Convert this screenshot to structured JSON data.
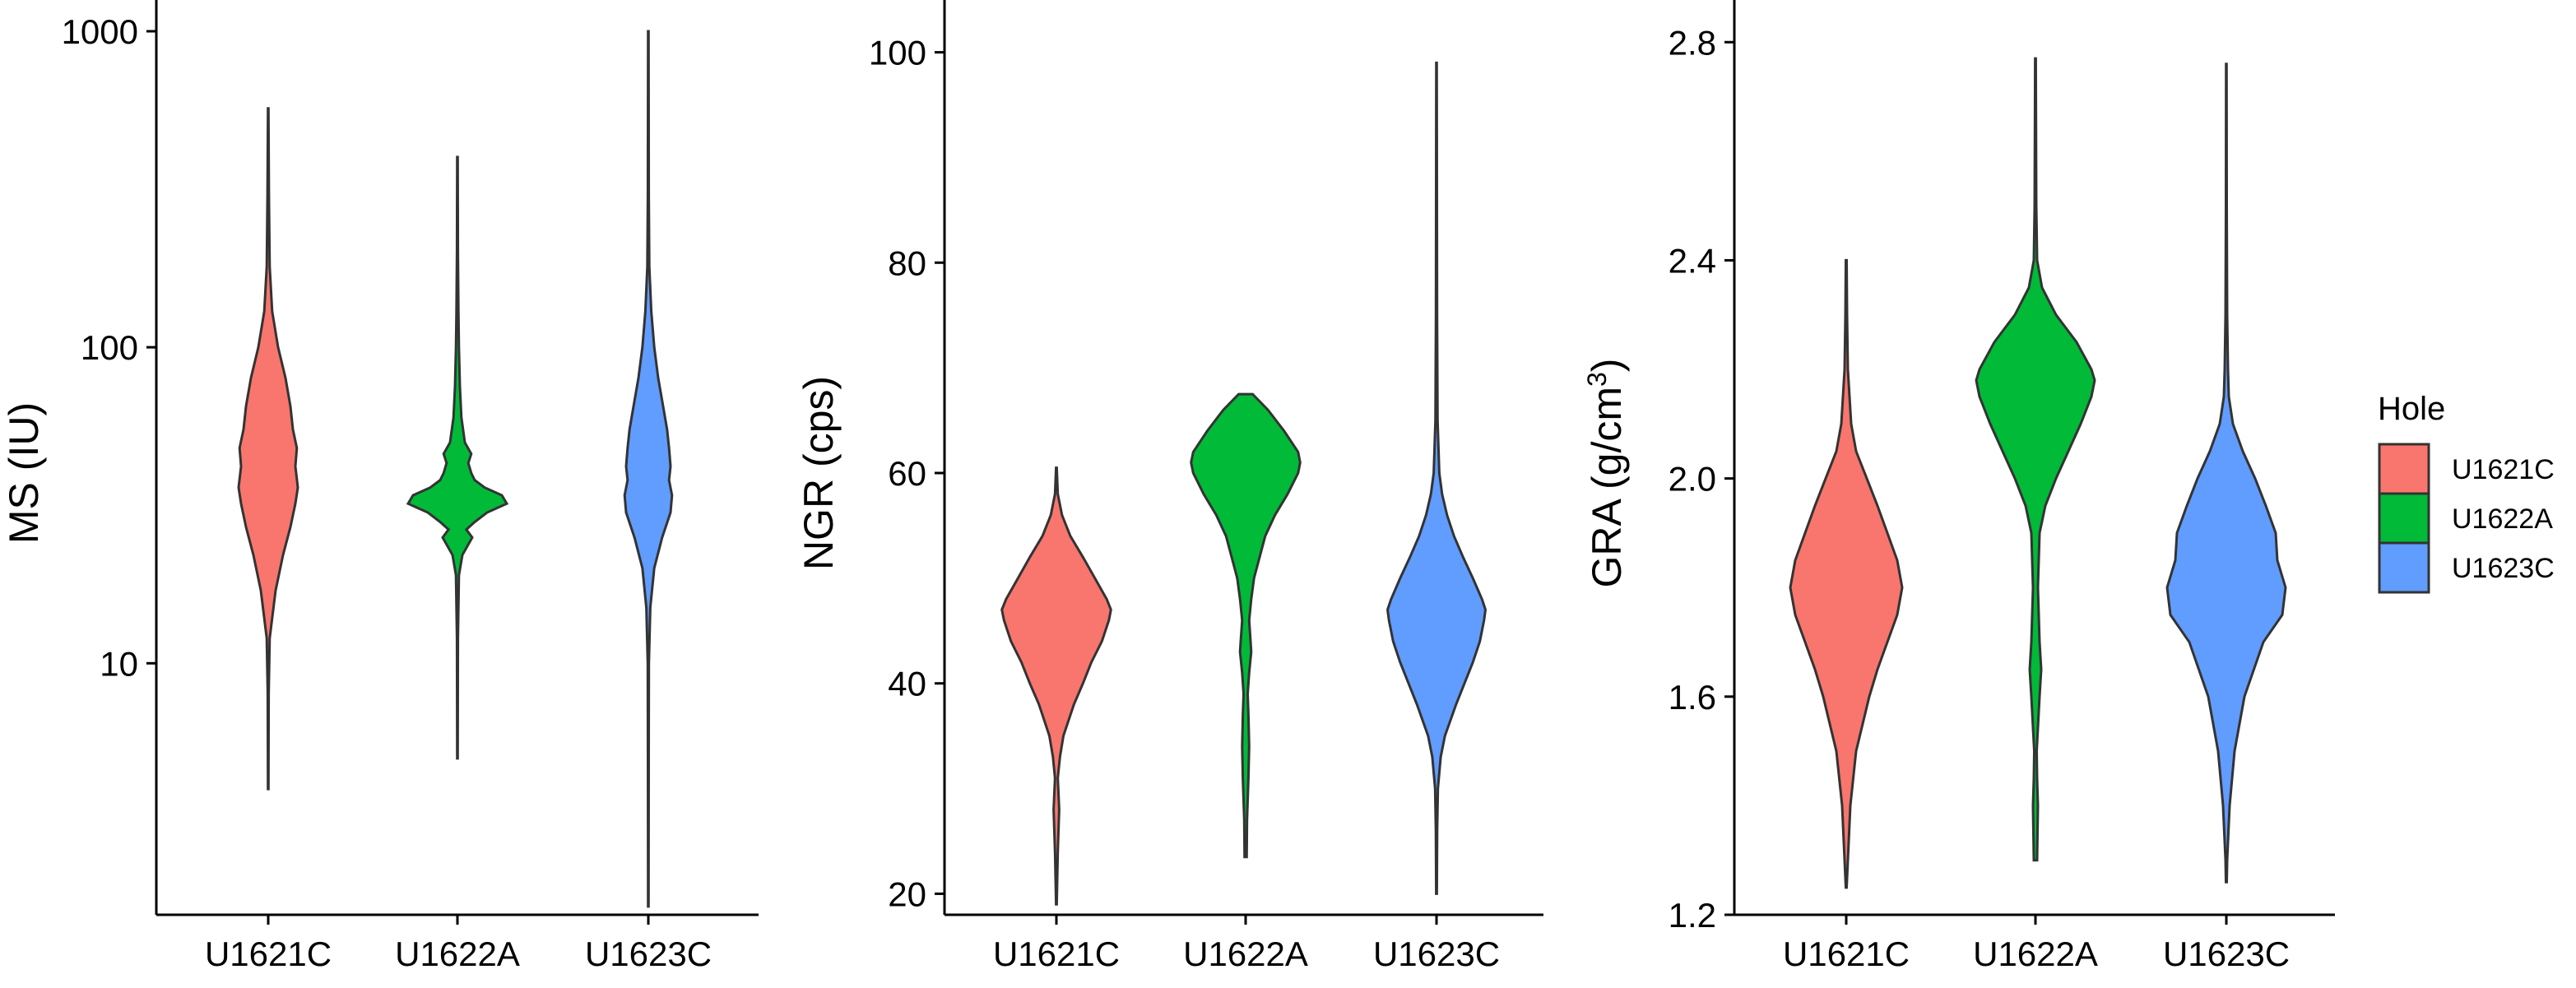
{
  "chart_data": [
    {
      "type": "violin",
      "ylabel": "MS (IU)",
      "yscale": "log",
      "ylim": [
        1.6,
        1000
      ],
      "yticks": [
        10,
        100,
        1000
      ],
      "ytick_labels": [
        "10",
        "100",
        "1000"
      ],
      "categories": [
        "U1621C",
        "U1622A",
        "U1623C"
      ],
      "colors": [
        "#F8766D",
        "#00BA38",
        "#619CFF"
      ],
      "series": [
        {
          "category": "U1621C",
          "min": 4,
          "max": 570,
          "profile": [
            [
              4,
              0.005
            ],
            [
              8,
              0.01
            ],
            [
              12,
              0.03
            ],
            [
              17,
              0.15
            ],
            [
              22,
              0.3
            ],
            [
              27,
              0.45
            ],
            [
              32,
              0.55
            ],
            [
              36,
              0.6
            ],
            [
              42,
              0.55
            ],
            [
              48,
              0.58
            ],
            [
              55,
              0.5
            ],
            [
              65,
              0.45
            ],
            [
              80,
              0.35
            ],
            [
              100,
              0.2
            ],
            [
              130,
              0.08
            ],
            [
              180,
              0.03
            ],
            [
              300,
              0.015
            ],
            [
              570,
              0.005
            ]
          ]
        },
        {
          "category": "U1622A",
          "min": 5,
          "max": 400,
          "profile": [
            [
              5,
              0.005
            ],
            [
              12,
              0.01
            ],
            [
              19,
              0.03
            ],
            [
              22,
              0.1
            ],
            [
              25,
              0.3
            ],
            [
              26.5,
              0.18
            ],
            [
              28,
              0.35
            ],
            [
              30,
              0.6
            ],
            [
              32,
              1.0
            ],
            [
              34,
              0.9
            ],
            [
              36,
              0.55
            ],
            [
              38,
              0.35
            ],
            [
              40,
              0.28
            ],
            [
              43,
              0.22
            ],
            [
              46,
              0.28
            ],
            [
              50,
              0.15
            ],
            [
              60,
              0.08
            ],
            [
              75,
              0.05
            ],
            [
              100,
              0.03
            ],
            [
              130,
              0.02
            ],
            [
              200,
              0.01
            ],
            [
              400,
              0.005
            ]
          ]
        },
        {
          "category": "U1623C",
          "min": 1.7,
          "max": 1000,
          "profile": [
            [
              1.7,
              0.005
            ],
            [
              5,
              0.008
            ],
            [
              10,
              0.012
            ],
            [
              15,
              0.04
            ],
            [
              20,
              0.12
            ],
            [
              25,
              0.28
            ],
            [
              30,
              0.45
            ],
            [
              34,
              0.48
            ],
            [
              38,
              0.42
            ],
            [
              42,
              0.45
            ],
            [
              48,
              0.42
            ],
            [
              55,
              0.38
            ],
            [
              65,
              0.3
            ],
            [
              80,
              0.2
            ],
            [
              100,
              0.12
            ],
            [
              130,
              0.06
            ],
            [
              180,
              0.02
            ],
            [
              300,
              0.01
            ],
            [
              1000,
              0.005
            ]
          ]
        }
      ]
    },
    {
      "type": "violin",
      "ylabel": "NGR (cps)",
      "ylim": [
        18,
        102
      ],
      "yticks": [
        20,
        40,
        60,
        80,
        100
      ],
      "ytick_labels": [
        "20",
        "40",
        "60",
        "80",
        "100"
      ],
      "categories": [
        "U1621C",
        "U1622A",
        "U1623C"
      ],
      "colors": [
        "#F8766D",
        "#00BA38",
        "#619CFF"
      ],
      "series": [
        {
          "category": "U1621C",
          "min": 19,
          "max": 60.5,
          "profile": [
            [
              19,
              0.005
            ],
            [
              24,
              0.02
            ],
            [
              28,
              0.04
            ],
            [
              31,
              0.02
            ],
            [
              33,
              0.05
            ],
            [
              35,
              0.1
            ],
            [
              38,
              0.25
            ],
            [
              40,
              0.38
            ],
            [
              42,
              0.5
            ],
            [
              44,
              0.65
            ],
            [
              46,
              0.75
            ],
            [
              47,
              0.78
            ],
            [
              48,
              0.72
            ],
            [
              50,
              0.55
            ],
            [
              52,
              0.38
            ],
            [
              54,
              0.2
            ],
            [
              56,
              0.08
            ],
            [
              58,
              0.02
            ],
            [
              60.5,
              0.005
            ]
          ]
        },
        {
          "category": "U1622A",
          "min": 23.5,
          "max": 67.5,
          "profile": [
            [
              23.5,
              0.015
            ],
            [
              27,
              0.02
            ],
            [
              31,
              0.04
            ],
            [
              34,
              0.05
            ],
            [
              37,
              0.04
            ],
            [
              39,
              0.03
            ],
            [
              41,
              0.05
            ],
            [
              43,
              0.08
            ],
            [
              44,
              0.07
            ],
            [
              46,
              0.05
            ],
            [
              48,
              0.08
            ],
            [
              50,
              0.12
            ],
            [
              52,
              0.2
            ],
            [
              54,
              0.28
            ],
            [
              56,
              0.42
            ],
            [
              58,
              0.6
            ],
            [
              60,
              0.75
            ],
            [
              61,
              0.78
            ],
            [
              62,
              0.75
            ],
            [
              64,
              0.55
            ],
            [
              66,
              0.32
            ],
            [
              67.5,
              0.1
            ]
          ]
        },
        {
          "category": "U1623C",
          "min": 20,
          "max": 99,
          "profile": [
            [
              20,
              0.005
            ],
            [
              26,
              0.01
            ],
            [
              30,
              0.02
            ],
            [
              33,
              0.06
            ],
            [
              35,
              0.12
            ],
            [
              38,
              0.28
            ],
            [
              40,
              0.4
            ],
            [
              42,
              0.52
            ],
            [
              44,
              0.62
            ],
            [
              46,
              0.68
            ],
            [
              47,
              0.7
            ],
            [
              48,
              0.65
            ],
            [
              50,
              0.52
            ],
            [
              52,
              0.38
            ],
            [
              54,
              0.25
            ],
            [
              56,
              0.15
            ],
            [
              58,
              0.08
            ],
            [
              60,
              0.04
            ],
            [
              65,
              0.015
            ],
            [
              75,
              0.008
            ],
            [
              99,
              0.004
            ]
          ]
        }
      ]
    },
    {
      "type": "violin",
      "ylabel": "GRA (g/cm",
      "ylabel_sup": "3",
      "ylabel_suffix": ")",
      "ylim": [
        1.2,
        2.82
      ],
      "yticks": [
        1.2,
        1.6,
        2.0,
        2.4,
        2.8
      ],
      "ytick_labels": [
        "1.2",
        "1.6",
        "2.0",
        "2.4",
        "2.8"
      ],
      "categories": [
        "U1621C",
        "U1622A",
        "U1623C"
      ],
      "colors": [
        "#F8766D",
        "#00BA38",
        "#619CFF"
      ],
      "series": [
        {
          "category": "U1621C",
          "min": 1.25,
          "max": 2.4,
          "profile": [
            [
              1.25,
              0.005
            ],
            [
              1.3,
              0.02
            ],
            [
              1.4,
              0.05
            ],
            [
              1.5,
              0.12
            ],
            [
              1.55,
              0.2
            ],
            [
              1.6,
              0.28
            ],
            [
              1.65,
              0.38
            ],
            [
              1.7,
              0.5
            ],
            [
              1.75,
              0.62
            ],
            [
              1.8,
              0.68
            ],
            [
              1.85,
              0.62
            ],
            [
              1.9,
              0.5
            ],
            [
              1.95,
              0.38
            ],
            [
              2.0,
              0.25
            ],
            [
              2.05,
              0.12
            ],
            [
              2.1,
              0.06
            ],
            [
              2.2,
              0.02
            ],
            [
              2.3,
              0.01
            ],
            [
              2.4,
              0.005
            ]
          ]
        },
        {
          "category": "U1622A",
          "min": 1.3,
          "max": 2.77,
          "profile": [
            [
              1.3,
              0.02
            ],
            [
              1.35,
              0.025
            ],
            [
              1.4,
              0.03
            ],
            [
              1.45,
              0.02
            ],
            [
              1.5,
              0.015
            ],
            [
              1.6,
              0.05
            ],
            [
              1.65,
              0.07
            ],
            [
              1.7,
              0.05
            ],
            [
              1.8,
              0.03
            ],
            [
              1.9,
              0.05
            ],
            [
              1.95,
              0.12
            ],
            [
              2.0,
              0.25
            ],
            [
              2.05,
              0.4
            ],
            [
              2.1,
              0.55
            ],
            [
              2.15,
              0.68
            ],
            [
              2.18,
              0.72
            ],
            [
              2.2,
              0.68
            ],
            [
              2.25,
              0.5
            ],
            [
              2.3,
              0.25
            ],
            [
              2.35,
              0.08
            ],
            [
              2.4,
              0.02
            ],
            [
              2.5,
              0.01
            ],
            [
              2.77,
              0.004
            ]
          ]
        },
        {
          "category": "U1623C",
          "min": 1.26,
          "max": 2.76,
          "profile": [
            [
              1.26,
              0.005
            ],
            [
              1.3,
              0.01
            ],
            [
              1.4,
              0.04
            ],
            [
              1.5,
              0.1
            ],
            [
              1.6,
              0.22
            ],
            [
              1.7,
              0.45
            ],
            [
              1.75,
              0.68
            ],
            [
              1.8,
              0.72
            ],
            [
              1.85,
              0.62
            ],
            [
              1.9,
              0.6
            ],
            [
              1.95,
              0.48
            ],
            [
              2.0,
              0.35
            ],
            [
              2.05,
              0.2
            ],
            [
              2.1,
              0.08
            ],
            [
              2.15,
              0.03
            ],
            [
              2.2,
              0.02
            ],
            [
              2.3,
              0.01
            ],
            [
              2.5,
              0.005
            ],
            [
              2.76,
              0.003
            ]
          ]
        }
      ]
    }
  ],
  "legend": {
    "title": "Hole",
    "items": [
      {
        "label": "U1621C",
        "color": "#F8766D"
      },
      {
        "label": "U1622A",
        "color": "#00BA38"
      },
      {
        "label": "U1623C",
        "color": "#619CFF"
      }
    ]
  }
}
